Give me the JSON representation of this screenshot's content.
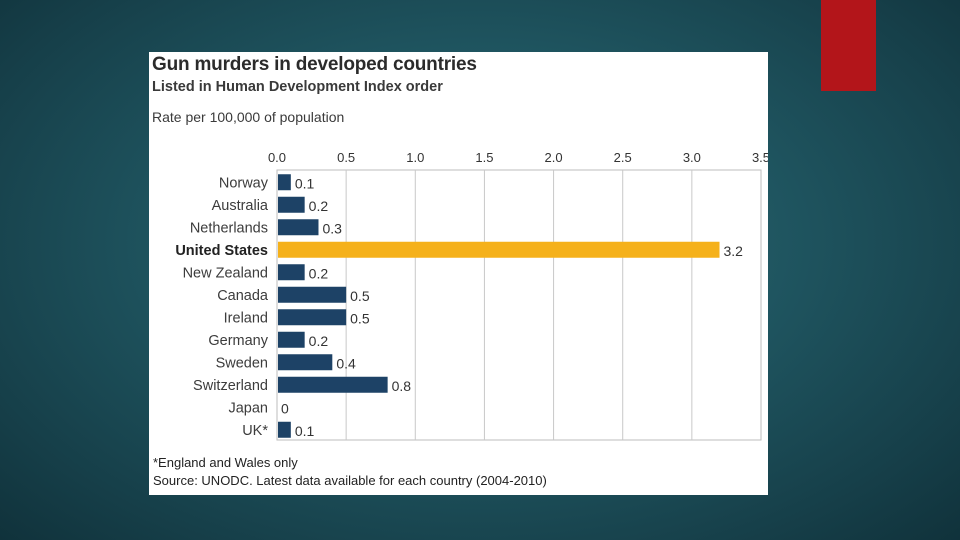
{
  "colors": {
    "bar": "#1d4266",
    "highlight": "#f5b11b",
    "accent": "#b3151a"
  },
  "chart_data": {
    "type": "bar",
    "orientation": "horizontal",
    "title": "Gun murders in developed countries",
    "subtitle": "Listed in Human Development Index order",
    "xlabel": "Rate per 100,000 of population",
    "ylabel": "",
    "xlim": [
      0,
      3.5
    ],
    "ticks": [
      "0.0",
      "0.5",
      "1.0",
      "1.5",
      "2.0",
      "2.5",
      "3.0",
      "3.5"
    ],
    "grid": true,
    "highlight": "United States",
    "categories": [
      "Norway",
      "Australia",
      "Netherlands",
      "United States",
      "New Zealand",
      "Canada",
      "Ireland",
      "Germany",
      "Sweden",
      "Switzerland",
      "Japan",
      "UK*"
    ],
    "values": [
      0.1,
      0.2,
      0.3,
      3.2,
      0.2,
      0.5,
      0.5,
      0.2,
      0.4,
      0.8,
      0,
      0.1
    ],
    "value_labels": [
      "0.1",
      "0.2",
      "0.3",
      "3.2",
      "0.2",
      "0.5",
      "0.5",
      "0.2",
      "0.4",
      "0.8",
      "0",
      "0.1"
    ],
    "footnote": "*England and Wales only",
    "source": "Source: UNODC. Latest data available for each country (2004-2010)"
  }
}
